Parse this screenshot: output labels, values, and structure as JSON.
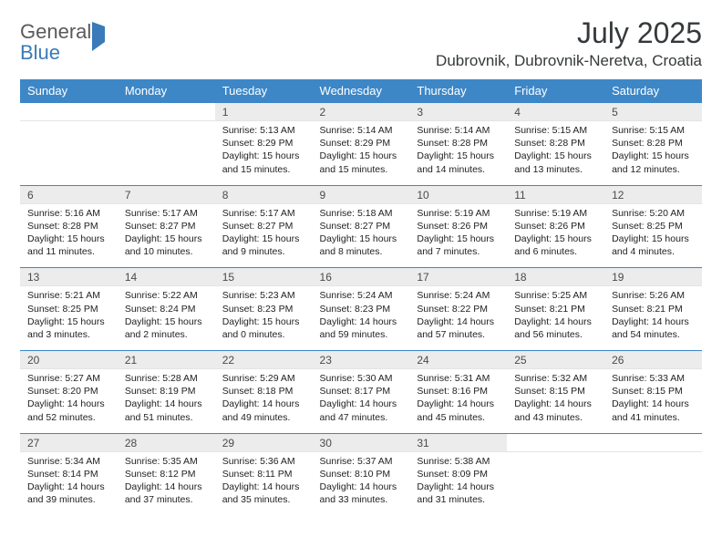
{
  "logo": {
    "word1": "General",
    "word2": "Blue"
  },
  "title": "July 2025",
  "location": "Dubrovnik, Dubrovnik-Neretva, Croatia",
  "weekday_header_bg": "#3d87c7",
  "weekday_header_fg": "#ffffff",
  "daynum_bg": "#ececec",
  "cell_border": "#3d87c7",
  "weekdays": [
    "Sunday",
    "Monday",
    "Tuesday",
    "Wednesday",
    "Thursday",
    "Friday",
    "Saturday"
  ],
  "weeks": [
    [
      {
        "n": "",
        "lines": [
          "",
          "",
          "",
          ""
        ]
      },
      {
        "n": "",
        "lines": [
          "",
          "",
          "",
          ""
        ]
      },
      {
        "n": "1",
        "lines": [
          "Sunrise: 5:13 AM",
          "Sunset: 8:29 PM",
          "Daylight: 15 hours",
          "and 15 minutes."
        ]
      },
      {
        "n": "2",
        "lines": [
          "Sunrise: 5:14 AM",
          "Sunset: 8:29 PM",
          "Daylight: 15 hours",
          "and 15 minutes."
        ]
      },
      {
        "n": "3",
        "lines": [
          "Sunrise: 5:14 AM",
          "Sunset: 8:28 PM",
          "Daylight: 15 hours",
          "and 14 minutes."
        ]
      },
      {
        "n": "4",
        "lines": [
          "Sunrise: 5:15 AM",
          "Sunset: 8:28 PM",
          "Daylight: 15 hours",
          "and 13 minutes."
        ]
      },
      {
        "n": "5",
        "lines": [
          "Sunrise: 5:15 AM",
          "Sunset: 8:28 PM",
          "Daylight: 15 hours",
          "and 12 minutes."
        ]
      }
    ],
    [
      {
        "n": "6",
        "lines": [
          "Sunrise: 5:16 AM",
          "Sunset: 8:28 PM",
          "Daylight: 15 hours",
          "and 11 minutes."
        ]
      },
      {
        "n": "7",
        "lines": [
          "Sunrise: 5:17 AM",
          "Sunset: 8:27 PM",
          "Daylight: 15 hours",
          "and 10 minutes."
        ]
      },
      {
        "n": "8",
        "lines": [
          "Sunrise: 5:17 AM",
          "Sunset: 8:27 PM",
          "Daylight: 15 hours",
          "and 9 minutes."
        ]
      },
      {
        "n": "9",
        "lines": [
          "Sunrise: 5:18 AM",
          "Sunset: 8:27 PM",
          "Daylight: 15 hours",
          "and 8 minutes."
        ]
      },
      {
        "n": "10",
        "lines": [
          "Sunrise: 5:19 AM",
          "Sunset: 8:26 PM",
          "Daylight: 15 hours",
          "and 7 minutes."
        ]
      },
      {
        "n": "11",
        "lines": [
          "Sunrise: 5:19 AM",
          "Sunset: 8:26 PM",
          "Daylight: 15 hours",
          "and 6 minutes."
        ]
      },
      {
        "n": "12",
        "lines": [
          "Sunrise: 5:20 AM",
          "Sunset: 8:25 PM",
          "Daylight: 15 hours",
          "and 4 minutes."
        ]
      }
    ],
    [
      {
        "n": "13",
        "lines": [
          "Sunrise: 5:21 AM",
          "Sunset: 8:25 PM",
          "Daylight: 15 hours",
          "and 3 minutes."
        ]
      },
      {
        "n": "14",
        "lines": [
          "Sunrise: 5:22 AM",
          "Sunset: 8:24 PM",
          "Daylight: 15 hours",
          "and 2 minutes."
        ]
      },
      {
        "n": "15",
        "lines": [
          "Sunrise: 5:23 AM",
          "Sunset: 8:23 PM",
          "Daylight: 15 hours",
          "and 0 minutes."
        ]
      },
      {
        "n": "16",
        "lines": [
          "Sunrise: 5:24 AM",
          "Sunset: 8:23 PM",
          "Daylight: 14 hours",
          "and 59 minutes."
        ]
      },
      {
        "n": "17",
        "lines": [
          "Sunrise: 5:24 AM",
          "Sunset: 8:22 PM",
          "Daylight: 14 hours",
          "and 57 minutes."
        ]
      },
      {
        "n": "18",
        "lines": [
          "Sunrise: 5:25 AM",
          "Sunset: 8:21 PM",
          "Daylight: 14 hours",
          "and 56 minutes."
        ]
      },
      {
        "n": "19",
        "lines": [
          "Sunrise: 5:26 AM",
          "Sunset: 8:21 PM",
          "Daylight: 14 hours",
          "and 54 minutes."
        ]
      }
    ],
    [
      {
        "n": "20",
        "lines": [
          "Sunrise: 5:27 AM",
          "Sunset: 8:20 PM",
          "Daylight: 14 hours",
          "and 52 minutes."
        ]
      },
      {
        "n": "21",
        "lines": [
          "Sunrise: 5:28 AM",
          "Sunset: 8:19 PM",
          "Daylight: 14 hours",
          "and 51 minutes."
        ]
      },
      {
        "n": "22",
        "lines": [
          "Sunrise: 5:29 AM",
          "Sunset: 8:18 PM",
          "Daylight: 14 hours",
          "and 49 minutes."
        ]
      },
      {
        "n": "23",
        "lines": [
          "Sunrise: 5:30 AM",
          "Sunset: 8:17 PM",
          "Daylight: 14 hours",
          "and 47 minutes."
        ]
      },
      {
        "n": "24",
        "lines": [
          "Sunrise: 5:31 AM",
          "Sunset: 8:16 PM",
          "Daylight: 14 hours",
          "and 45 minutes."
        ]
      },
      {
        "n": "25",
        "lines": [
          "Sunrise: 5:32 AM",
          "Sunset: 8:15 PM",
          "Daylight: 14 hours",
          "and 43 minutes."
        ]
      },
      {
        "n": "26",
        "lines": [
          "Sunrise: 5:33 AM",
          "Sunset: 8:15 PM",
          "Daylight: 14 hours",
          "and 41 minutes."
        ]
      }
    ],
    [
      {
        "n": "27",
        "lines": [
          "Sunrise: 5:34 AM",
          "Sunset: 8:14 PM",
          "Daylight: 14 hours",
          "and 39 minutes."
        ]
      },
      {
        "n": "28",
        "lines": [
          "Sunrise: 5:35 AM",
          "Sunset: 8:12 PM",
          "Daylight: 14 hours",
          "and 37 minutes."
        ]
      },
      {
        "n": "29",
        "lines": [
          "Sunrise: 5:36 AM",
          "Sunset: 8:11 PM",
          "Daylight: 14 hours",
          "and 35 minutes."
        ]
      },
      {
        "n": "30",
        "lines": [
          "Sunrise: 5:37 AM",
          "Sunset: 8:10 PM",
          "Daylight: 14 hours",
          "and 33 minutes."
        ]
      },
      {
        "n": "31",
        "lines": [
          "Sunrise: 5:38 AM",
          "Sunset: 8:09 PM",
          "Daylight: 14 hours",
          "and 31 minutes."
        ]
      },
      {
        "n": "",
        "lines": [
          "",
          "",
          "",
          ""
        ]
      },
      {
        "n": "",
        "lines": [
          "",
          "",
          "",
          ""
        ]
      }
    ]
  ]
}
